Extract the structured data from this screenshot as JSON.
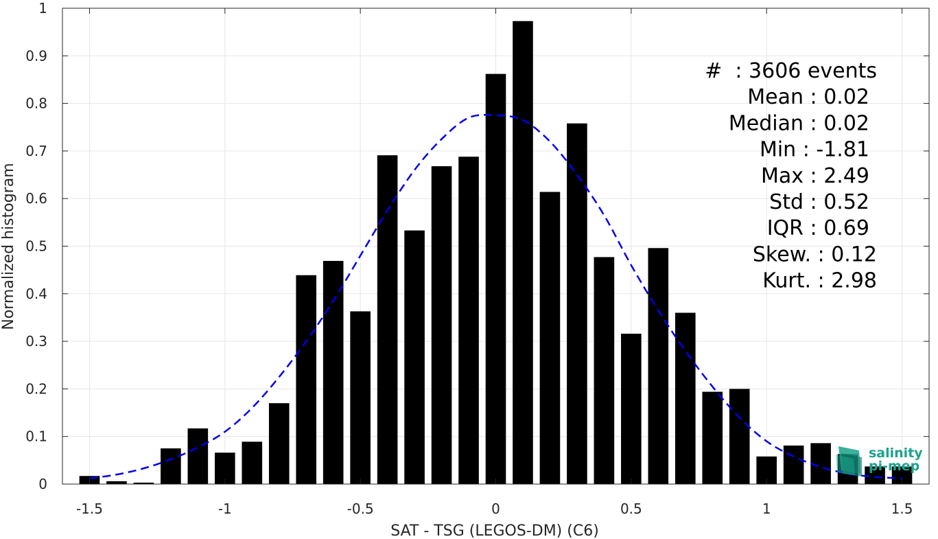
{
  "chart_data": {
    "type": "bar",
    "xlabel": "SAT - TSG (LEGOS-DM) (C6)",
    "ylabel": "Normalized histogram",
    "xlim": [
      -1.6,
      1.6
    ],
    "ylim": [
      0,
      1
    ],
    "grid": true,
    "x_ticks": [
      -1.5,
      -1,
      -0.5,
      0,
      0.5,
      1,
      1.5
    ],
    "x_tick_labels": [
      "-1.5",
      "-1",
      "-0.5",
      "0",
      "0.5",
      "1",
      "1.5"
    ],
    "y_ticks": [
      0,
      0.1,
      0.2,
      0.3,
      0.4,
      0.5,
      0.6,
      0.7,
      0.8,
      0.9,
      1
    ],
    "y_tick_labels": [
      "0",
      "0.1",
      "0.2",
      "0.3",
      "0.4",
      "0.5",
      "0.6",
      "0.7",
      "0.8",
      "0.9",
      "1"
    ],
    "bar_width": 0.075,
    "bar_color": "#000000",
    "bars": {
      "x": [
        -1.5,
        -1.4,
        -1.3,
        -1.2,
        -1.1,
        -1.0,
        -0.9,
        -0.8,
        -0.7,
        -0.6,
        -0.5,
        -0.4,
        -0.3,
        -0.2,
        -0.1,
        0.0,
        0.1,
        0.2,
        0.3,
        0.4,
        0.5,
        0.6,
        0.7,
        0.8,
        0.9,
        1.0,
        1.1,
        1.2,
        1.3,
        1.4,
        1.5
      ],
      "values": [
        0.017,
        0.006,
        0.003,
        0.075,
        0.117,
        0.066,
        0.089,
        0.17,
        0.439,
        0.469,
        0.363,
        0.691,
        0.533,
        0.668,
        0.688,
        0.862,
        0.973,
        0.614,
        0.758,
        0.477,
        0.316,
        0.496,
        0.36,
        0.194,
        0.2,
        0.058,
        0.081,
        0.086,
        0.063,
        0.037,
        0.037
      ]
    },
    "fit_curve": {
      "style": "dashed",
      "color": "#0000ee",
      "x": [
        -1.5,
        -1.4,
        -1.3,
        -1.2,
        -1.1,
        -1.0,
        -0.9,
        -0.8,
        -0.7,
        -0.6,
        -0.5,
        -0.4,
        -0.3,
        -0.2,
        -0.1,
        0.0,
        0.1,
        0.2,
        0.3,
        0.4,
        0.5,
        0.6,
        0.7,
        0.8,
        0.9,
        1.0,
        1.1,
        1.2,
        1.3,
        1.4,
        1.5
      ],
      "y": [
        0.012,
        0.02,
        0.033,
        0.052,
        0.077,
        0.11,
        0.16,
        0.225,
        0.3,
        0.385,
        0.48,
        0.575,
        0.66,
        0.725,
        0.77,
        0.775,
        0.765,
        0.72,
        0.65,
        0.565,
        0.46,
        0.365,
        0.28,
        0.205,
        0.14,
        0.09,
        0.058,
        0.036,
        0.022,
        0.015,
        0.012
      ]
    },
    "annotations": [
      "#  : 3606 events",
      "Mean : 0.02",
      "Median : 0.02",
      "Min : -1.81",
      "Max : 2.49",
      "Std : 0.52",
      "IQR : 0.69",
      "Skew. : 0.12",
      "Kurt. : 2.98"
    ]
  },
  "logo": {
    "line1": "salinity",
    "line2": "pi-mep",
    "color": "#1aa38c"
  }
}
